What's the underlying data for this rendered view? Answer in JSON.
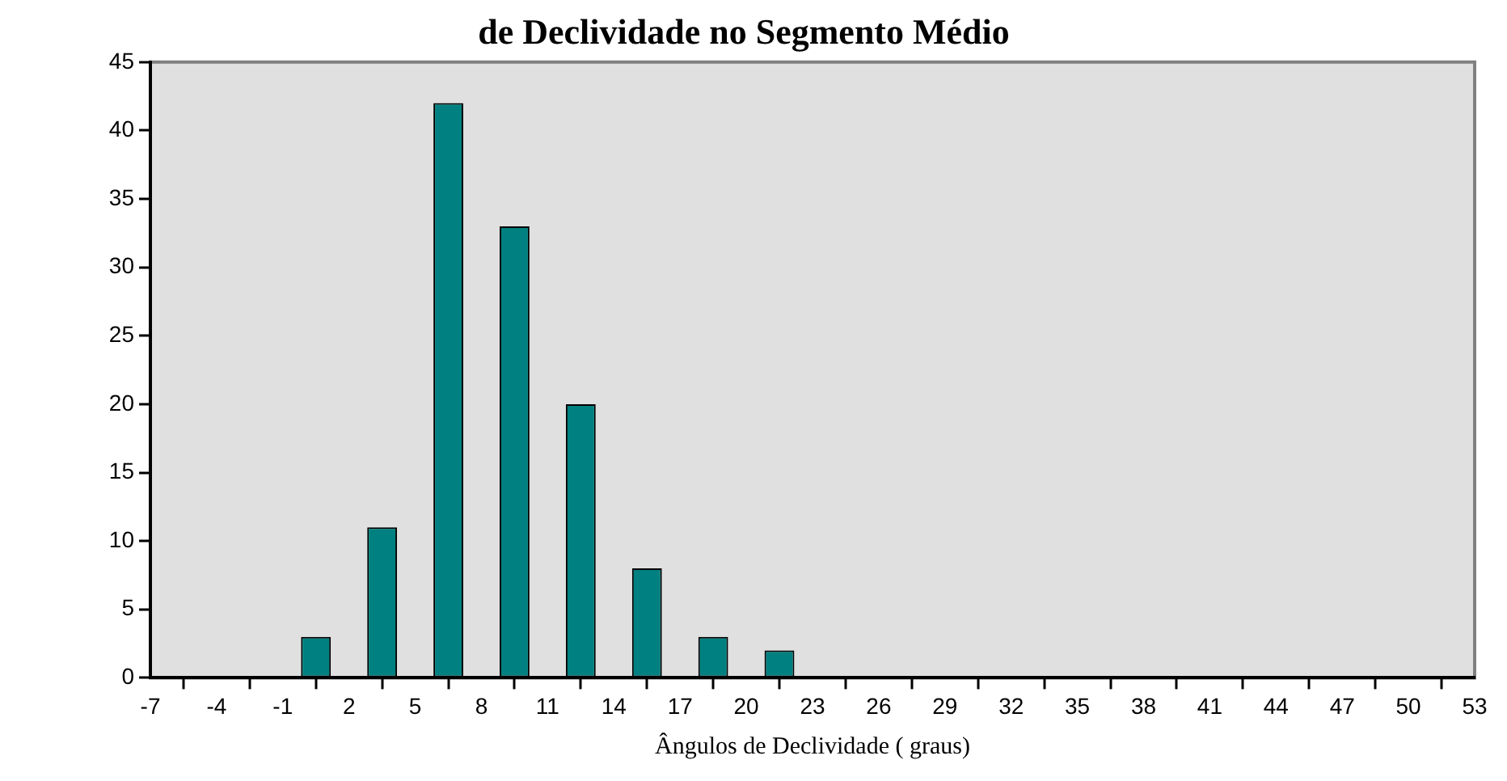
{
  "chart_data": {
    "type": "histogram",
    "title": "de Declividade no Segmento Médio",
    "xlabel": "Ângulos de Declividade ( graus)",
    "bins": [
      -7,
      -4,
      -1,
      2,
      5,
      8,
      11,
      14,
      17,
      20,
      23,
      26,
      29,
      32,
      35,
      38,
      41,
      44,
      47,
      50,
      53
    ],
    "values": [
      0,
      0,
      3,
      11,
      42,
      33,
      20,
      8,
      3,
      2,
      0,
      0,
      0,
      0,
      0,
      0,
      0,
      0,
      0,
      0
    ],
    "color": "#008080",
    "xlim": [
      -7,
      53
    ],
    "xticks": [
      -7,
      -4,
      -1,
      2,
      5,
      8,
      11,
      14,
      17,
      20,
      23,
      26,
      29,
      32,
      35,
      38,
      41,
      44,
      47,
      50,
      53
    ],
    "ylim": [
      0,
      45
    ],
    "yticks": [
      0,
      5,
      10,
      15,
      20,
      25,
      30,
      35,
      40,
      45
    ],
    "grid": false,
    "legend": false
  }
}
